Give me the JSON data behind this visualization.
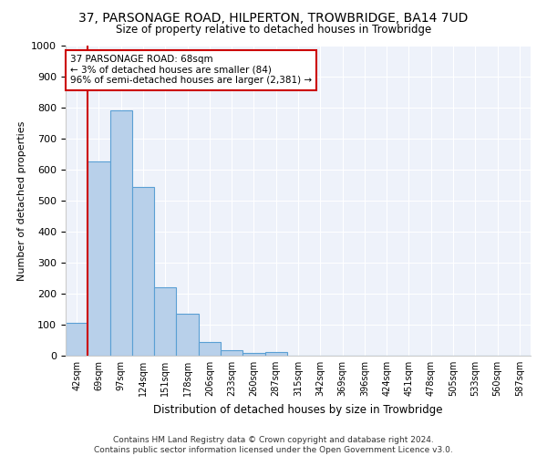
{
  "title": "37, PARSONAGE ROAD, HILPERTON, TROWBRIDGE, BA14 7UD",
  "subtitle": "Size of property relative to detached houses in Trowbridge",
  "xlabel": "Distribution of detached houses by size in Trowbridge",
  "ylabel": "Number of detached properties",
  "categories": [
    "42sqm",
    "69sqm",
    "97sqm",
    "124sqm",
    "151sqm",
    "178sqm",
    "206sqm",
    "233sqm",
    "260sqm",
    "287sqm",
    "315sqm",
    "342sqm",
    "369sqm",
    "396sqm",
    "424sqm",
    "451sqm",
    "478sqm",
    "505sqm",
    "533sqm",
    "560sqm",
    "587sqm"
  ],
  "bar_heights": [
    105,
    625,
    790,
    545,
    222,
    135,
    43,
    17,
    10,
    12,
    0,
    0,
    0,
    0,
    0,
    0,
    0,
    0,
    0,
    0,
    0
  ],
  "bar_color": "#b8d0ea",
  "bar_edge_color": "#5a9fd4",
  "vline_color": "#cc0000",
  "annotation_text": "37 PARSONAGE ROAD: 68sqm\n← 3% of detached houses are smaller (84)\n96% of semi-detached houses are larger (2,381) →",
  "annotation_box_color": "#cc0000",
  "ylim": [
    0,
    1000
  ],
  "yticks": [
    0,
    100,
    200,
    300,
    400,
    500,
    600,
    700,
    800,
    900,
    1000
  ],
  "footer_line1": "Contains HM Land Registry data © Crown copyright and database right 2024.",
  "footer_line2": "Contains public sector information licensed under the Open Government Licence v3.0.",
  "background_color": "#ffffff",
  "plot_background_color": "#eef2fa"
}
